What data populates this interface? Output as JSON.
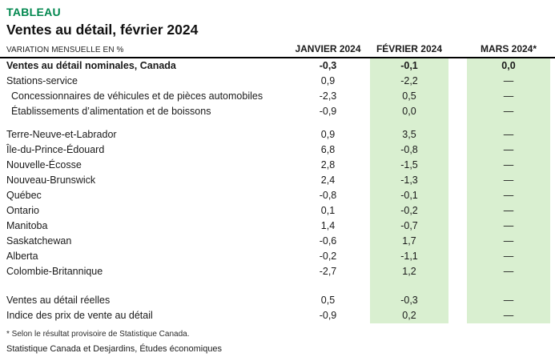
{
  "header": {
    "kicker": "TABLEAU"
  },
  "footnotes": {
    "note": "* Selon le résultat provisoire de Statistique Canada.",
    "source": "Statistique Canada et Desjardins, Études économiques"
  },
  "colors": {
    "brand_green": "#00874E",
    "band_green": "#D9EFD0",
    "header_rule": "#000000"
  },
  "chart_data": {
    "type": "table",
    "title": "Ventes au détail, février 2024",
    "unit_label": "VARIATION MENSUELLE EN %",
    "columns": [
      "JANVIER 2024",
      "FÉVRIER 2024",
      "MARS 2024*"
    ],
    "highlighted_columns": [
      "FÉVRIER 2024",
      "MARS 2024*"
    ],
    "rows": [
      {
        "label": "Ventes au détail nominales, Canada",
        "values": [
          "-0,3",
          "-0,1",
          "0,0"
        ]
      },
      {
        "label": "Stations-service",
        "values": [
          "0,9",
          "-2,2",
          "—"
        ]
      },
      {
        "label": "Concessionnaires de véhicules et de pièces automobiles",
        "values": [
          "-2,3",
          "0,5",
          "—"
        ]
      },
      {
        "label": "Établissements d’alimentation et de boissons",
        "values": [
          "-0,9",
          "0,0",
          "—"
        ]
      },
      {
        "label": "Terre-Neuve-et-Labrador",
        "values": [
          "0,9",
          "3,5",
          "—"
        ]
      },
      {
        "label": "Île-du-Prince-Édouard",
        "values": [
          "6,8",
          "-0,8",
          "—"
        ]
      },
      {
        "label": "Nouvelle-Écosse",
        "values": [
          "2,8",
          "-1,5",
          "—"
        ]
      },
      {
        "label": "Nouveau-Brunswick",
        "values": [
          "2,4",
          "-1,3",
          "—"
        ]
      },
      {
        "label": "Québec",
        "values": [
          "-0,8",
          "-0,1",
          "—"
        ]
      },
      {
        "label": "Ontario",
        "values": [
          "0,1",
          "-0,2",
          "—"
        ]
      },
      {
        "label": "Manitoba",
        "values": [
          "1,4",
          "-0,7",
          "—"
        ]
      },
      {
        "label": "Saskatchewan",
        "values": [
          "-0,6",
          "1,7",
          "—"
        ]
      },
      {
        "label": "Alberta",
        "values": [
          "-0,2",
          "-1,1",
          "—"
        ]
      },
      {
        "label": "Colombie-Britannique",
        "values": [
          "-2,7",
          "1,2",
          "—"
        ]
      },
      {
        "label": "Ventes au détail réelles",
        "values": [
          "0,5",
          "-0,3",
          "—"
        ]
      },
      {
        "label": "Indice des prix de vente au détail",
        "values": [
          "-0,9",
          "0,2",
          "—"
        ]
      }
    ]
  }
}
